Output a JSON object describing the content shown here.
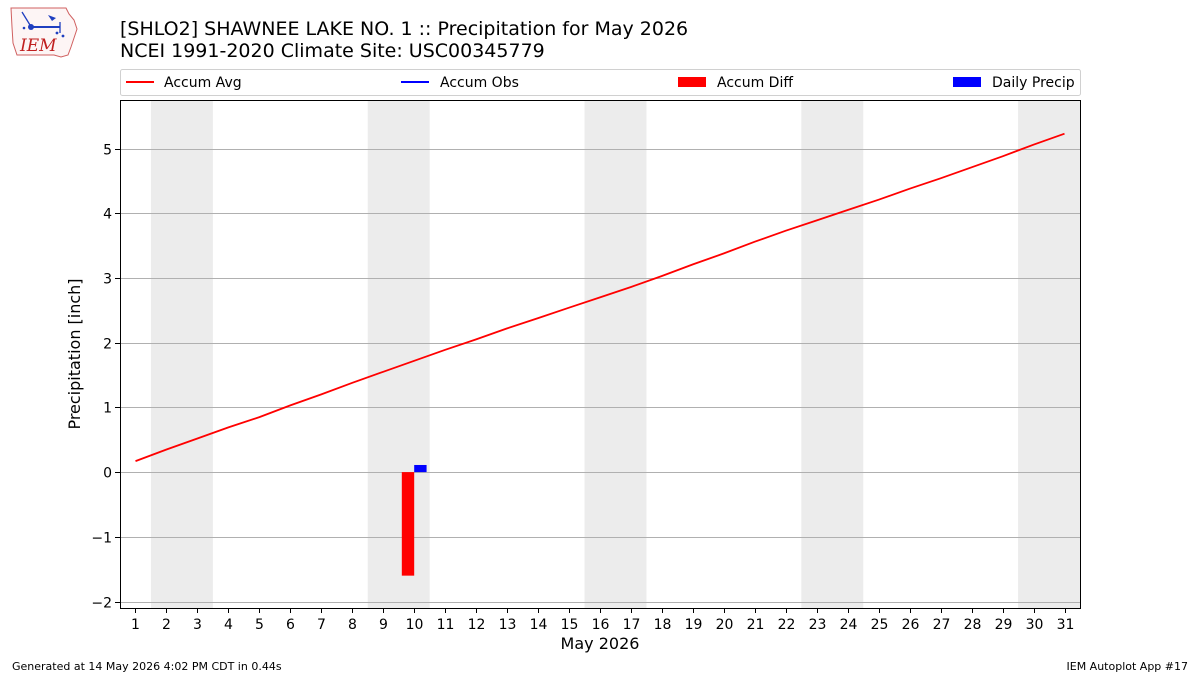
{
  "header": {
    "logo_text": "IEM",
    "title_line1": "[SHLO2] SHAWNEE LAKE NO. 1 :: Precipitation for May 2026",
    "title_line2": "NCEI 1991-2020 Climate Site: USC00345779"
  },
  "footer": {
    "left": "Generated at 14 May 2026 4:02 PM CDT in 0.44s",
    "right": "IEM Autoplot App #17"
  },
  "colors": {
    "accum_avg": "#ff0000",
    "accum_obs": "#0000ff",
    "accum_diff": "#ff0000",
    "daily_precip": "#0000ff",
    "weekend_shade": "#ececec",
    "grid": "#b0b0b0"
  },
  "chart_data": {
    "type": "line",
    "title": "[SHLO2] SHAWNEE LAKE NO. 1 :: Precipitation for May 2026",
    "subtitle": "NCEI 1991-2020 Climate Site: USC00345779",
    "xlabel": "May 2026",
    "ylabel": "Precipitation [inch]",
    "xlim": [
      0.5,
      31.5
    ],
    "ylim": [
      -2.1,
      5.75
    ],
    "yticks": [
      -2,
      -1,
      0,
      1,
      2,
      3,
      4,
      5
    ],
    "ytick_labels": [
      "−2",
      "−1",
      "0",
      "1",
      "2",
      "3",
      "4",
      "5"
    ],
    "x": [
      1,
      2,
      3,
      4,
      5,
      6,
      7,
      8,
      9,
      10,
      11,
      12,
      13,
      14,
      15,
      16,
      17,
      18,
      19,
      20,
      21,
      22,
      23,
      24,
      25,
      26,
      27,
      28,
      29,
      30,
      31
    ],
    "xtick_labels": [
      "1",
      "2",
      "3",
      "4",
      "5",
      "6",
      "7",
      "8",
      "9",
      "10",
      "11",
      "12",
      "13",
      "14",
      "15",
      "16",
      "17",
      "18",
      "19",
      "20",
      "21",
      "22",
      "23",
      "24",
      "25",
      "26",
      "27",
      "28",
      "29",
      "30",
      "31"
    ],
    "grid": "horizontal",
    "legend_position": "top",
    "weekend_spans": [
      [
        1.5,
        3.5
      ],
      [
        8.5,
        10.5
      ],
      [
        15.5,
        17.5
      ],
      [
        22.5,
        24.5
      ],
      [
        29.5,
        31.5
      ]
    ],
    "series": [
      {
        "name": "Accum Avg",
        "kind": "line",
        "x": [
          1,
          2,
          3,
          4,
          5,
          6,
          7,
          8,
          9,
          10,
          11,
          12,
          13,
          14,
          15,
          16,
          17,
          18,
          19,
          20,
          21,
          22,
          23,
          24,
          25,
          26,
          27,
          28,
          29,
          30,
          31
        ],
        "values": [
          0.17,
          0.35,
          0.52,
          0.69,
          0.85,
          1.03,
          1.2,
          1.38,
          1.55,
          1.72,
          1.89,
          2.05,
          2.22,
          2.38,
          2.54,
          2.7,
          2.86,
          3.03,
          3.21,
          3.38,
          3.56,
          3.73,
          3.89,
          4.05,
          4.21,
          4.38,
          4.54,
          4.71,
          4.88,
          5.06,
          5.23
        ]
      },
      {
        "name": "Accum Obs",
        "kind": "line",
        "x": [],
        "values": []
      },
      {
        "name": "Accum Diff",
        "kind": "bar",
        "x": [
          10
        ],
        "values": [
          -1.6
        ]
      },
      {
        "name": "Daily Precip",
        "kind": "bar",
        "x": [
          10
        ],
        "values": [
          0.11
        ]
      }
    ]
  }
}
